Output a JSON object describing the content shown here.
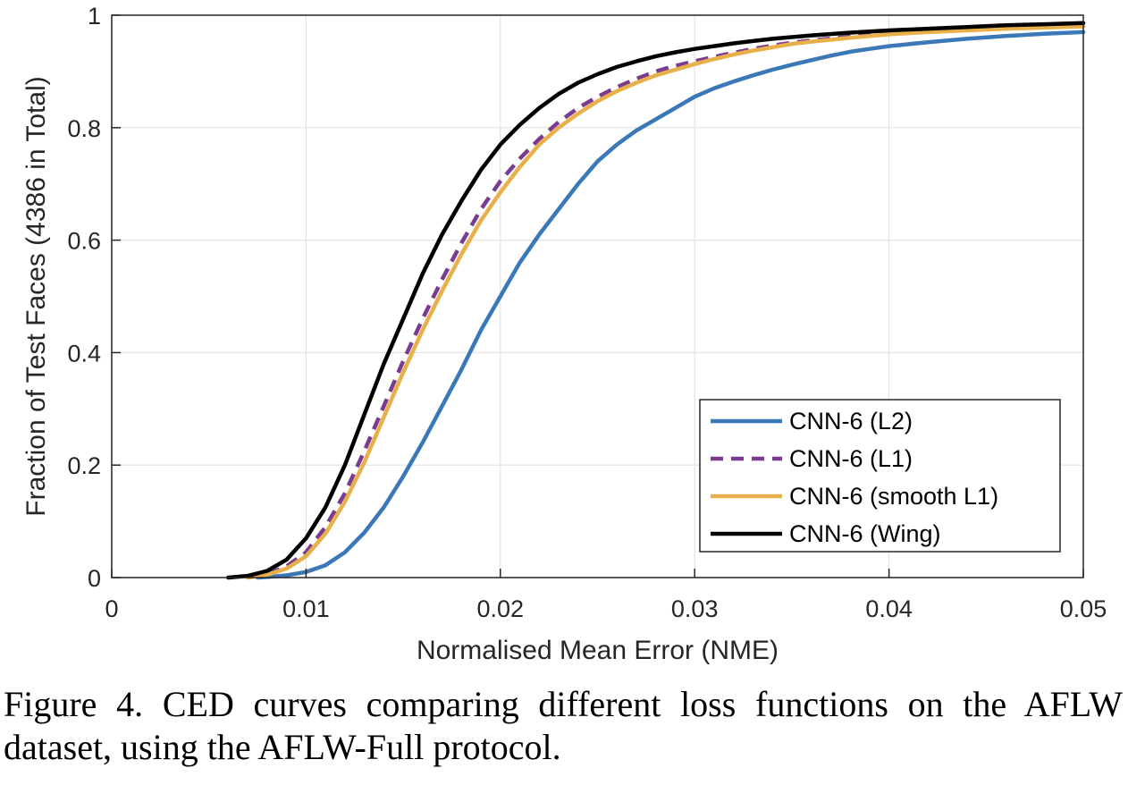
{
  "chart_data": {
    "type": "line",
    "title": "",
    "xlabel": "Normalised Mean Error (NME)",
    "ylabel": "Fraction of Test Faces (4386 in Total)",
    "xlim": [
      0,
      0.05
    ],
    "ylim": [
      0,
      1
    ],
    "x_ticks": [
      "0",
      "0.01",
      "0.02",
      "0.03",
      "0.04",
      "0.05"
    ],
    "y_ticks": [
      "0",
      "0.2",
      "0.4",
      "0.6",
      "0.8",
      "1"
    ],
    "grid": true,
    "legend_position": "bottom-right",
    "series": [
      {
        "name": "CNN-6 (L2)",
        "color": "#3a78b8",
        "dash": "solid",
        "x": [
          0.0075,
          0.008,
          0.009,
          0.01,
          0.011,
          0.012,
          0.013,
          0.014,
          0.015,
          0.016,
          0.017,
          0.018,
          0.019,
          0.02,
          0.021,
          0.022,
          0.023,
          0.024,
          0.025,
          0.026,
          0.027,
          0.028,
          0.029,
          0.03,
          0.031,
          0.032,
          0.033,
          0.034,
          0.035,
          0.036,
          0.037,
          0.038,
          0.039,
          0.04,
          0.042,
          0.044,
          0.046,
          0.048,
          0.05
        ],
        "y": [
          0,
          0.001,
          0.004,
          0.01,
          0.022,
          0.045,
          0.08,
          0.125,
          0.18,
          0.24,
          0.305,
          0.37,
          0.44,
          0.5,
          0.56,
          0.61,
          0.655,
          0.7,
          0.74,
          0.77,
          0.795,
          0.815,
          0.835,
          0.855,
          0.87,
          0.882,
          0.893,
          0.903,
          0.912,
          0.92,
          0.928,
          0.935,
          0.94,
          0.945,
          0.952,
          0.958,
          0.963,
          0.967,
          0.97
        ]
      },
      {
        "name": "CNN-6 (L1)",
        "color": "#7b3b8e",
        "dash": "dashed",
        "x": [
          0.007,
          0.008,
          0.009,
          0.01,
          0.011,
          0.012,
          0.013,
          0.014,
          0.015,
          0.016,
          0.017,
          0.018,
          0.019,
          0.02,
          0.021,
          0.022,
          0.023,
          0.024,
          0.025,
          0.026,
          0.027,
          0.028,
          0.029,
          0.03,
          0.031,
          0.032,
          0.033,
          0.034,
          0.035,
          0.036,
          0.038,
          0.04,
          0.042,
          0.044,
          0.046,
          0.048,
          0.05
        ],
        "y": [
          0,
          0.006,
          0.02,
          0.045,
          0.09,
          0.15,
          0.225,
          0.305,
          0.385,
          0.46,
          0.53,
          0.595,
          0.655,
          0.705,
          0.745,
          0.78,
          0.81,
          0.835,
          0.855,
          0.872,
          0.887,
          0.9,
          0.91,
          0.918,
          0.926,
          0.933,
          0.94,
          0.946,
          0.951,
          0.955,
          0.962,
          0.967,
          0.971,
          0.974,
          0.977,
          0.979,
          0.981
        ]
      },
      {
        "name": "CNN-6 (smooth L1)",
        "color": "#e8b04b",
        "dash": "solid",
        "x": [
          0.007,
          0.008,
          0.009,
          0.01,
          0.011,
          0.012,
          0.013,
          0.014,
          0.015,
          0.016,
          0.017,
          0.018,
          0.019,
          0.02,
          0.021,
          0.022,
          0.023,
          0.024,
          0.025,
          0.026,
          0.027,
          0.028,
          0.029,
          0.03,
          0.031,
          0.032,
          0.033,
          0.034,
          0.035,
          0.036,
          0.038,
          0.04,
          0.042,
          0.044,
          0.046,
          0.048,
          0.05
        ],
        "y": [
          0,
          0.005,
          0.016,
          0.038,
          0.078,
          0.135,
          0.205,
          0.285,
          0.365,
          0.44,
          0.51,
          0.575,
          0.635,
          0.685,
          0.73,
          0.77,
          0.8,
          0.825,
          0.847,
          0.865,
          0.88,
          0.893,
          0.903,
          0.913,
          0.922,
          0.93,
          0.937,
          0.943,
          0.949,
          0.953,
          0.96,
          0.966,
          0.97,
          0.973,
          0.976,
          0.978,
          0.98
        ]
      },
      {
        "name": "CNN-6 (Wing)",
        "color": "#000000",
        "dash": "solid",
        "x": [
          0.006,
          0.007,
          0.008,
          0.009,
          0.01,
          0.011,
          0.012,
          0.013,
          0.014,
          0.015,
          0.016,
          0.017,
          0.018,
          0.019,
          0.02,
          0.021,
          0.022,
          0.023,
          0.024,
          0.025,
          0.026,
          0.027,
          0.028,
          0.029,
          0.03,
          0.031,
          0.032,
          0.033,
          0.034,
          0.035,
          0.036,
          0.038,
          0.04,
          0.042,
          0.044,
          0.046,
          0.048,
          0.05
        ],
        "y": [
          0,
          0.003,
          0.012,
          0.032,
          0.07,
          0.125,
          0.2,
          0.29,
          0.38,
          0.46,
          0.54,
          0.61,
          0.67,
          0.725,
          0.77,
          0.805,
          0.835,
          0.86,
          0.88,
          0.895,
          0.908,
          0.918,
          0.927,
          0.934,
          0.94,
          0.945,
          0.95,
          0.954,
          0.958,
          0.961,
          0.964,
          0.969,
          0.973,
          0.976,
          0.979,
          0.982,
          0.984,
          0.986
        ]
      }
    ]
  },
  "caption": "Figure 4. CED curves comparing different loss functions on the AFLW dataset, using the AFLW-Full protocol."
}
